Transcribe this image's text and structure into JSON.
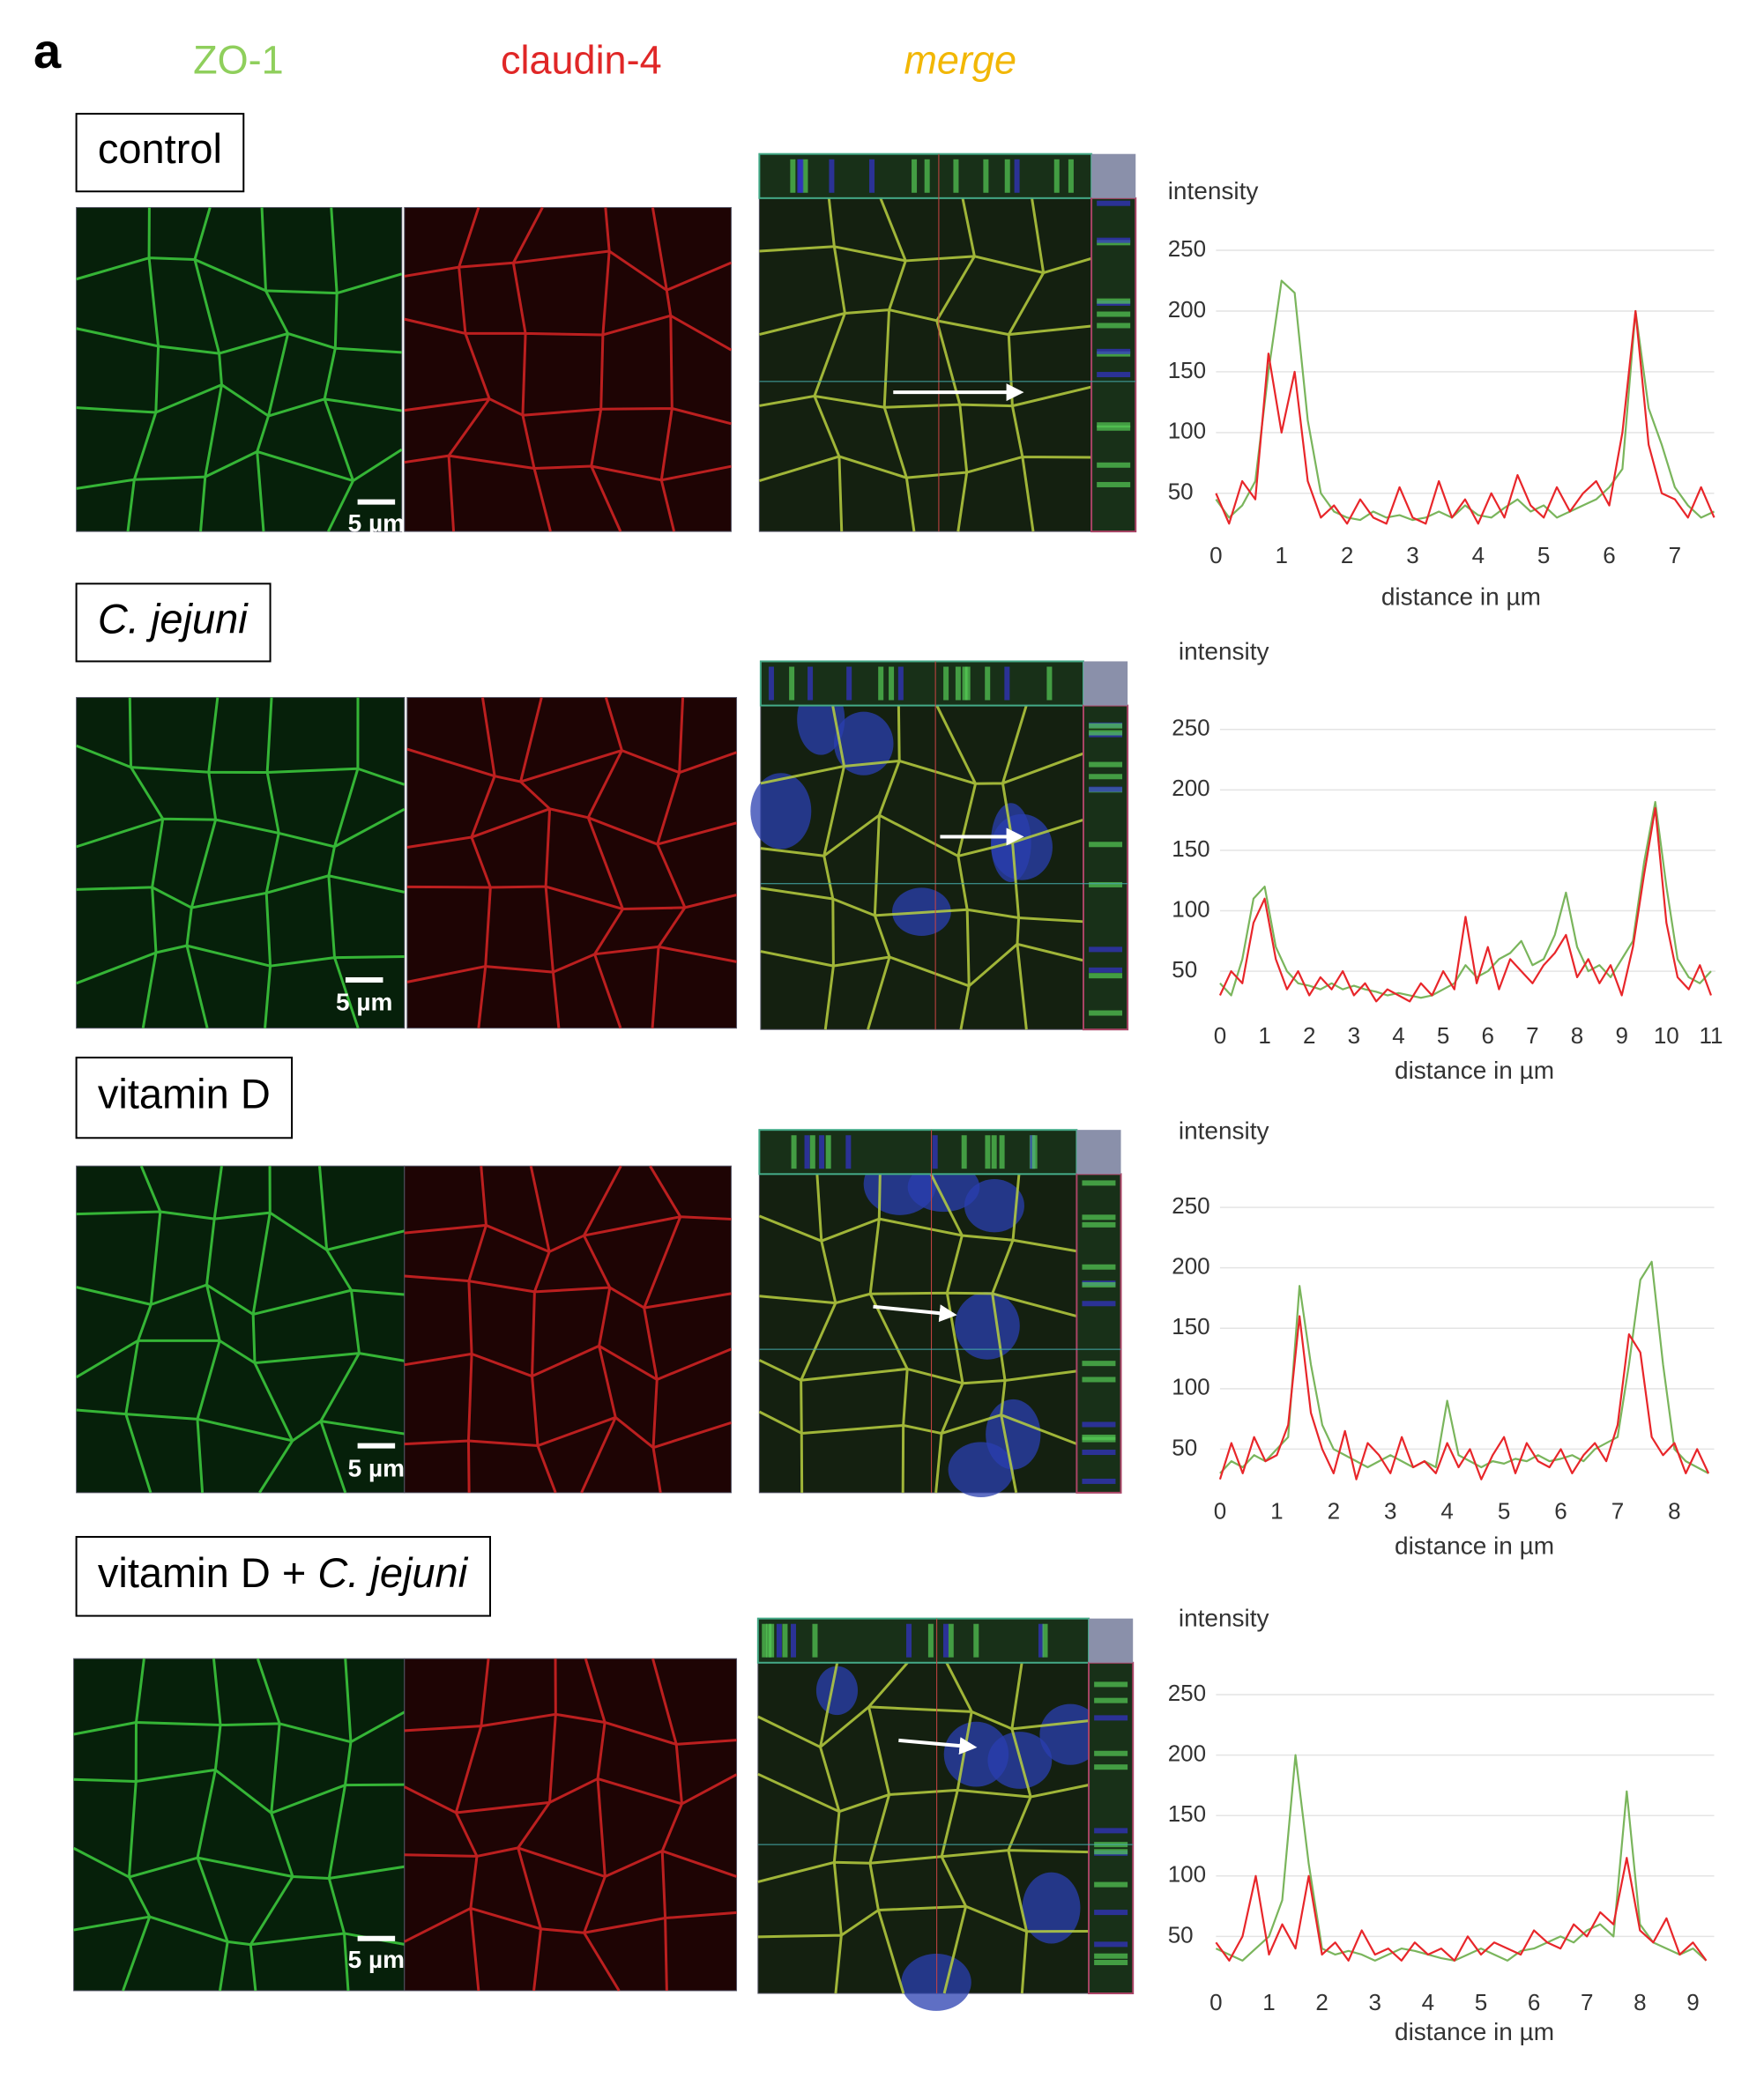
{
  "figure": {
    "panel_label": "a",
    "columns": [
      {
        "text": "ZO-1",
        "color": "#8fcf5c"
      },
      {
        "text": "claudin-4",
        "color": "#e02727"
      },
      {
        "text": "merge",
        "color": "#f2b705"
      }
    ],
    "rows": [
      {
        "label": [
          {
            "text": "control",
            "style": "normal"
          }
        ],
        "scale_bar": "5 µm"
      },
      {
        "label": [
          {
            "text": "C. jejuni",
            "style": "italic"
          }
        ],
        "scale_bar": "5 µm"
      },
      {
        "label": [
          {
            "text": "vitamin D",
            "style": "normal"
          }
        ],
        "scale_bar": "5 µm"
      },
      {
        "label": [
          {
            "text": "vitamin D + ",
            "style": "normal"
          },
          {
            "text": "C. jejuni",
            "style": "italic"
          }
        ],
        "scale_bar": "5 µm"
      }
    ]
  },
  "chart_data": [
    {
      "type": "line",
      "ylabel": "intensity",
      "xlabel": "distance in µm",
      "x": [
        0,
        0.2,
        0.4,
        0.6,
        0.8,
        1,
        1.2,
        1.4,
        1.6,
        1.8,
        2,
        2.2,
        2.4,
        2.6,
        2.8,
        3,
        3.2,
        3.4,
        3.6,
        3.8,
        4,
        4.2,
        4.4,
        4.6,
        4.8,
        5,
        5.2,
        5.4,
        5.6,
        5.8,
        6,
        6.2,
        6.4,
        6.6,
        6.8,
        7,
        7.2,
        7.4,
        7.6
      ],
      "series": [
        {
          "color": "#7ab55c",
          "values": [
            45,
            30,
            40,
            60,
            150,
            225,
            215,
            110,
            50,
            35,
            30,
            28,
            35,
            30,
            32,
            28,
            30,
            35,
            30,
            40,
            32,
            30,
            38,
            45,
            35,
            40,
            30,
            35,
            40,
            45,
            55,
            70,
            200,
            120,
            90,
            55,
            40,
            30,
            35
          ]
        },
        {
          "color": "#e8262a",
          "values": [
            50,
            25,
            60,
            45,
            165,
            100,
            150,
            60,
            30,
            40,
            25,
            45,
            30,
            25,
            55,
            30,
            25,
            60,
            30,
            45,
            25,
            50,
            30,
            65,
            40,
            30,
            55,
            35,
            50,
            60,
            40,
            100,
            200,
            90,
            50,
            45,
            30,
            55,
            30
          ]
        }
      ],
      "xlim": [
        0,
        7.6
      ],
      "xticks": [
        0,
        1,
        2,
        3,
        4,
        5,
        6,
        7
      ],
      "ylim": [
        20,
        260
      ],
      "yticks": [
        50,
        100,
        150,
        200,
        250
      ],
      "grid": true
    },
    {
      "type": "line",
      "ylabel": "intensity",
      "xlabel": "distance in µm",
      "x": [
        0,
        0.25,
        0.5,
        0.75,
        1,
        1.25,
        1.5,
        1.75,
        2,
        2.25,
        2.5,
        2.75,
        3,
        3.25,
        3.5,
        3.75,
        4,
        4.25,
        4.5,
        4.75,
        5,
        5.25,
        5.5,
        5.75,
        6,
        6.25,
        6.5,
        6.75,
        7,
        7.25,
        7.5,
        7.75,
        8,
        8.25,
        8.5,
        8.75,
        9,
        9.25,
        9.5,
        9.75,
        10,
        10.25,
        10.5,
        10.75,
        11
      ],
      "series": [
        {
          "color": "#7ab55c",
          "values": [
            40,
            30,
            60,
            110,
            120,
            70,
            50,
            40,
            38,
            35,
            40,
            35,
            38,
            35,
            33,
            30,
            32,
            30,
            28,
            30,
            35,
            40,
            55,
            45,
            50,
            60,
            65,
            75,
            55,
            60,
            80,
            115,
            70,
            50,
            55,
            45,
            60,
            75,
            140,
            190,
            120,
            60,
            45,
            40,
            50
          ]
        },
        {
          "color": "#e8262a",
          "values": [
            30,
            50,
            40,
            90,
            110,
            60,
            35,
            50,
            30,
            45,
            35,
            50,
            30,
            40,
            25,
            35,
            30,
            25,
            40,
            30,
            50,
            35,
            95,
            40,
            70,
            35,
            60,
            50,
            40,
            55,
            65,
            80,
            45,
            60,
            40,
            55,
            30,
            70,
            130,
            185,
            90,
            45,
            35,
            55,
            30
          ]
        }
      ],
      "xlim": [
        0,
        11.1
      ],
      "xticks": [
        0,
        1,
        2,
        3,
        4,
        5,
        6,
        7,
        8,
        9,
        10,
        11
      ],
      "ylim": [
        20,
        260
      ],
      "yticks": [
        50,
        100,
        150,
        200,
        250
      ],
      "grid": true
    },
    {
      "type": "line",
      "ylabel": "intensity",
      "xlabel": "distance in µm",
      "x": [
        0,
        0.2,
        0.4,
        0.6,
        0.8,
        1,
        1.2,
        1.4,
        1.6,
        1.8,
        2,
        2.2,
        2.4,
        2.6,
        2.8,
        3,
        3.2,
        3.4,
        3.6,
        3.8,
        4,
        4.2,
        4.4,
        4.6,
        4.8,
        5,
        5.2,
        5.4,
        5.6,
        5.8,
        6,
        6.2,
        6.4,
        6.6,
        6.8,
        7,
        7.2,
        7.4,
        7.6,
        7.8,
        8,
        8.2,
        8.4,
        8.6
      ],
      "series": [
        {
          "color": "#7ab55c",
          "values": [
            30,
            40,
            35,
            45,
            40,
            50,
            60,
            185,
            120,
            70,
            50,
            45,
            40,
            35,
            40,
            45,
            40,
            35,
            40,
            35,
            90,
            45,
            40,
            35,
            40,
            38,
            42,
            40,
            45,
            40,
            42,
            45,
            40,
            50,
            55,
            60,
            120,
            190,
            205,
            120,
            50,
            40,
            35,
            30
          ]
        },
        {
          "color": "#e8262a",
          "values": [
            25,
            55,
            30,
            60,
            40,
            45,
            70,
            160,
            80,
            50,
            30,
            65,
            25,
            55,
            45,
            30,
            60,
            35,
            40,
            30,
            55,
            35,
            50,
            25,
            45,
            60,
            30,
            55,
            40,
            35,
            50,
            30,
            45,
            55,
            40,
            70,
            145,
            130,
            60,
            45,
            55,
            30,
            50,
            30
          ]
        }
      ],
      "xlim": [
        0,
        8.7
      ],
      "xticks": [
        0,
        1,
        2,
        3,
        4,
        5,
        6,
        7,
        8
      ],
      "ylim": [
        20,
        260
      ],
      "yticks": [
        50,
        100,
        150,
        200,
        250
      ],
      "grid": true
    },
    {
      "type": "line",
      "ylabel": "intensity",
      "xlabel": "distance in µm",
      "x": [
        0,
        0.25,
        0.5,
        0.75,
        1,
        1.25,
        1.5,
        1.75,
        2,
        2.25,
        2.5,
        2.75,
        3,
        3.25,
        3.5,
        3.75,
        4,
        4.25,
        4.5,
        4.75,
        5,
        5.25,
        5.5,
        5.75,
        6,
        6.25,
        6.5,
        6.75,
        7,
        7.25,
        7.5,
        7.75,
        8,
        8.25,
        8.5,
        8.75,
        9,
        9.25
      ],
      "series": [
        {
          "color": "#7ab55c",
          "values": [
            40,
            35,
            30,
            40,
            50,
            80,
            200,
            110,
            40,
            35,
            38,
            35,
            30,
            35,
            40,
            38,
            35,
            32,
            30,
            35,
            40,
            35,
            30,
            38,
            40,
            45,
            50,
            45,
            55,
            60,
            50,
            170,
            60,
            45,
            40,
            35,
            40,
            30
          ]
        },
        {
          "color": "#e8262a",
          "values": [
            45,
            30,
            50,
            100,
            35,
            60,
            40,
            100,
            35,
            45,
            30,
            55,
            35,
            40,
            30,
            45,
            35,
            40,
            30,
            50,
            35,
            45,
            40,
            35,
            55,
            45,
            40,
            60,
            50,
            70,
            60,
            115,
            55,
            45,
            65,
            35,
            45,
            30
          ]
        }
      ],
      "xlim": [
        0,
        9.4
      ],
      "xticks": [
        0,
        1,
        2,
        3,
        4,
        5,
        6,
        7,
        8,
        9
      ],
      "ylim": [
        20,
        260
      ],
      "yticks": [
        50,
        100,
        150,
        200,
        250
      ],
      "grid": true
    }
  ]
}
